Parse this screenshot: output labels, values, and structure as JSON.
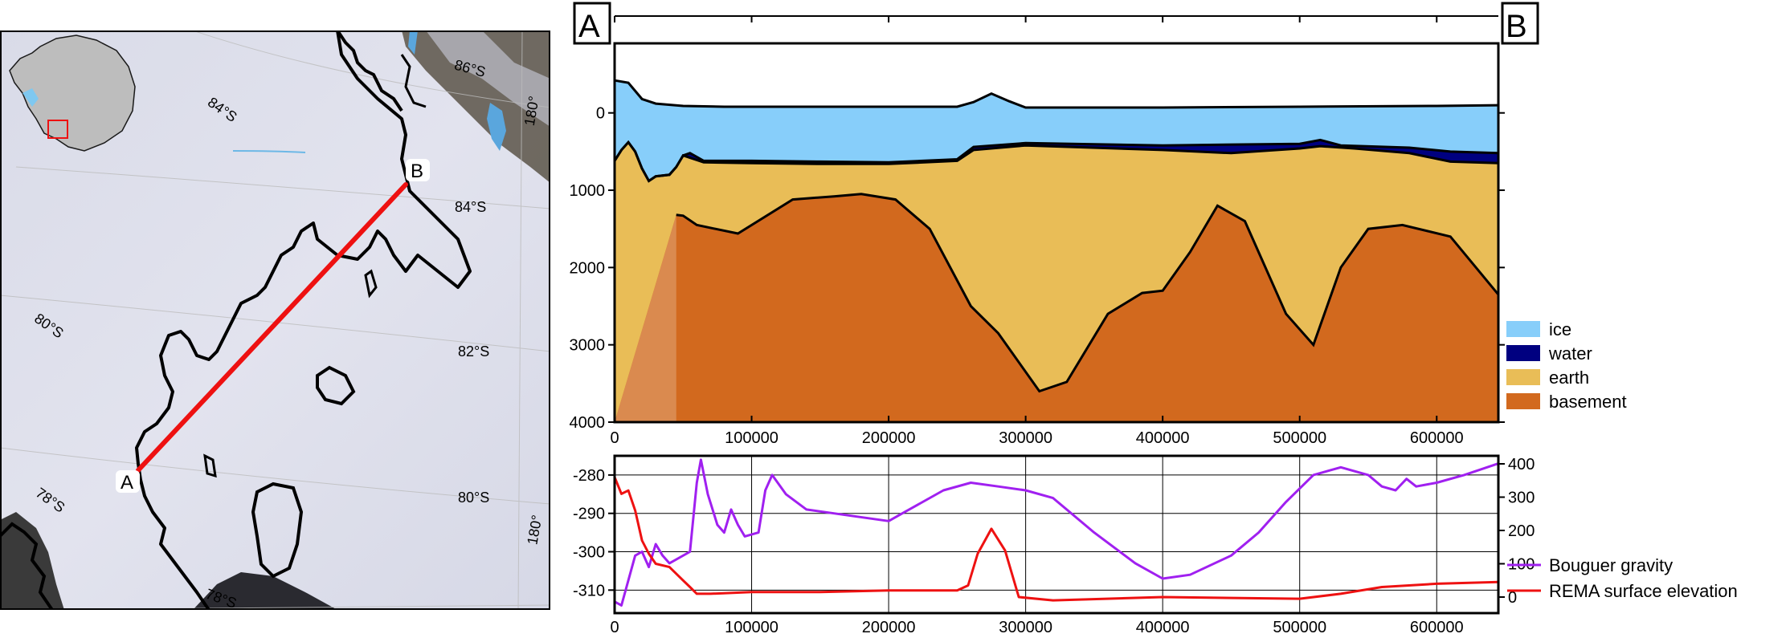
{
  "map": {
    "profile_endpoints": [
      {
        "label": "A"
      },
      {
        "label": "B"
      }
    ],
    "graticule_labels": [
      {
        "text": "84°S"
      },
      {
        "text": "86°S"
      },
      {
        "text": "180°"
      },
      {
        "text": "84°S"
      },
      {
        "text": "80°S"
      },
      {
        "text": "82°S"
      },
      {
        "text": "80°S"
      },
      {
        "text": "78°S"
      },
      {
        "text": "78°S"
      },
      {
        "text": "180°"
      }
    ],
    "colors": {
      "profile_line": "#ee1111",
      "inset_box": "#ee1111",
      "coastline": "#000000",
      "ice": "#dcdde9"
    }
  },
  "cross_section": {
    "corner_labels": {
      "left": "A",
      "right": "B"
    },
    "chart_data": [
      {
        "type": "area",
        "x_ticks": [
          "0",
          "100000",
          "200000",
          "300000",
          "400000",
          "500000",
          "600000"
        ],
        "y_ticks": [
          "0",
          "1000",
          "2000",
          "3000",
          "4000"
        ],
        "xlim": [
          0,
          645000
        ],
        "ylim": [
          -900,
          4000
        ],
        "y_reversed": true,
        "legend": "right",
        "legend_entries": [
          {
            "name": "ice",
            "color": "#87cefa"
          },
          {
            "name": "water",
            "color": "#000080"
          },
          {
            "name": "earth",
            "color": "#e9bd57"
          },
          {
            "name": "basement",
            "color": "#d2691e"
          }
        ],
        "layers": {
          "ice_top": [
            [
              0,
              -420
            ],
            [
              10000,
              -390
            ],
            [
              20000,
              -180
            ],
            [
              30000,
              -120
            ],
            [
              50000,
              -90
            ],
            [
              80000,
              -80
            ],
            [
              150000,
              -80
            ],
            [
              250000,
              -80
            ],
            [
              262000,
              -140
            ],
            [
              275000,
              -250
            ],
            [
              288000,
              -150
            ],
            [
              300000,
              -70
            ],
            [
              400000,
              -70
            ],
            [
              500000,
              -80
            ],
            [
              600000,
              -90
            ],
            [
              645000,
              -100
            ]
          ],
          "ice_base": [
            [
              0,
              620
            ],
            [
              5000,
              480
            ],
            [
              10000,
              380
            ],
            [
              15000,
              500
            ],
            [
              20000,
              720
            ],
            [
              25000,
              880
            ],
            [
              30000,
              820
            ],
            [
              40000,
              800
            ],
            [
              45000,
              700
            ],
            [
              50000,
              550
            ],
            [
              55000,
              520
            ],
            [
              65000,
              620
            ],
            [
              100000,
              620
            ],
            [
              150000,
              630
            ],
            [
              200000,
              640
            ],
            [
              250000,
              600
            ],
            [
              262000,
              440
            ],
            [
              300000,
              390
            ],
            [
              400000,
              420
            ],
            [
              500000,
              400
            ],
            [
              515000,
              350
            ],
            [
              530000,
              420
            ],
            [
              580000,
              450
            ],
            [
              610000,
              500
            ],
            [
              645000,
              520
            ]
          ],
          "water_base": [
            [
              0,
              620
            ],
            [
              5000,
              480
            ],
            [
              10000,
              380
            ],
            [
              15000,
              500
            ],
            [
              20000,
              720
            ],
            [
              25000,
              880
            ],
            [
              30000,
              820
            ],
            [
              40000,
              800
            ],
            [
              45000,
              700
            ],
            [
              50000,
              550
            ],
            [
              55000,
              580
            ],
            [
              65000,
              640
            ],
            [
              100000,
              650
            ],
            [
              150000,
              660
            ],
            [
              200000,
              660
            ],
            [
              250000,
              620
            ],
            [
              262000,
              480
            ],
            [
              300000,
              420
            ],
            [
              400000,
              480
            ],
            [
              450000,
              520
            ],
            [
              500000,
              460
            ],
            [
              515000,
              430
            ],
            [
              540000,
              460
            ],
            [
              580000,
              520
            ],
            [
              610000,
              630
            ],
            [
              645000,
              650
            ]
          ],
          "basement_top": [
            [
              0,
              4000
            ],
            [
              45000,
              1320
            ],
            [
              50000,
              1330
            ],
            [
              60000,
              1450
            ],
            [
              90000,
              1560
            ],
            [
              130000,
              1120
            ],
            [
              160000,
              1080
            ],
            [
              180000,
              1050
            ],
            [
              205000,
              1120
            ],
            [
              230000,
              1500
            ],
            [
              260000,
              2500
            ],
            [
              280000,
              2850
            ],
            [
              310000,
              3600
            ],
            [
              330000,
              3480
            ],
            [
              360000,
              2600
            ],
            [
              385000,
              2330
            ],
            [
              400000,
              2300
            ],
            [
              420000,
              1800
            ],
            [
              440000,
              1200
            ],
            [
              460000,
              1400
            ],
            [
              490000,
              2600
            ],
            [
              510000,
              3000
            ],
            [
              530000,
              2000
            ],
            [
              550000,
              1500
            ],
            [
              575000,
              1450
            ],
            [
              610000,
              1600
            ],
            [
              645000,
              2350
            ]
          ]
        }
      },
      {
        "type": "line",
        "x_ticks": [
          "0",
          "100000",
          "200000",
          "300000",
          "400000",
          "500000",
          "600000"
        ],
        "y_left_ticks": [
          "-280",
          "-290",
          "-300",
          "-310"
        ],
        "y_right_ticks": [
          "400",
          "300",
          "200",
          "100",
          "0"
        ],
        "xlim": [
          0,
          645000
        ],
        "ylim_left": [
          -316,
          -275
        ],
        "ylim_right": [
          0,
          400
        ],
        "grid": true,
        "legend": "right",
        "series": [
          {
            "name": "Bouguer gravity",
            "axis": "left",
            "color": "#a020f0",
            "points": [
              [
                0,
                -313
              ],
              [
                5000,
                -314
              ],
              [
                15000,
                -301
              ],
              [
                20000,
                -300
              ],
              [
                25000,
                -304
              ],
              [
                30000,
                -298
              ],
              [
                35000,
                -301
              ],
              [
                40000,
                -303
              ],
              [
                55000,
                -300
              ],
              [
                60000,
                -282
              ],
              [
                63000,
                -276
              ],
              [
                68000,
                -285
              ],
              [
                75000,
                -293
              ],
              [
                80000,
                -295
              ],
              [
                85000,
                -289
              ],
              [
                90000,
                -293
              ],
              [
                95000,
                -296
              ],
              [
                105000,
                -295
              ],
              [
                110000,
                -284
              ],
              [
                115000,
                -280
              ],
              [
                125000,
                -285
              ],
              [
                140000,
                -289
              ],
              [
                160000,
                -290
              ],
              [
                200000,
                -292
              ],
              [
                210000,
                -290
              ],
              [
                240000,
                -284
              ],
              [
                260000,
                -282
              ],
              [
                280000,
                -283
              ],
              [
                300000,
                -284
              ],
              [
                320000,
                -286
              ],
              [
                350000,
                -295
              ],
              [
                380000,
                -303
              ],
              [
                400000,
                -307
              ],
              [
                420000,
                -306
              ],
              [
                450000,
                -301
              ],
              [
                470000,
                -295
              ],
              [
                490000,
                -287
              ],
              [
                510000,
                -280
              ],
              [
                530000,
                -278
              ],
              [
                550000,
                -280
              ],
              [
                560000,
                -283
              ],
              [
                570000,
                -284
              ],
              [
                578000,
                -281
              ],
              [
                585000,
                -283
              ],
              [
                600000,
                -282
              ],
              [
                620000,
                -280
              ],
              [
                645000,
                -277
              ]
            ]
          },
          {
            "name": "REMA surface elevation",
            "axis": "right",
            "color": "#ee1111",
            "points": [
              [
                0,
                360
              ],
              [
                5000,
                310
              ],
              [
                10000,
                320
              ],
              [
                15000,
                260
              ],
              [
                20000,
                170
              ],
              [
                25000,
                130
              ],
              [
                30000,
                100
              ],
              [
                40000,
                90
              ],
              [
                50000,
                50
              ],
              [
                55000,
                30
              ],
              [
                60000,
                10
              ],
              [
                70000,
                10
              ],
              [
                100000,
                15
              ],
              [
                150000,
                15
              ],
              [
                200000,
                20
              ],
              [
                250000,
                20
              ],
              [
                258000,
                35
              ],
              [
                265000,
                130
              ],
              [
                275000,
                205
              ],
              [
                285000,
                140
              ],
              [
                295000,
                0
              ],
              [
                320000,
                -10
              ],
              [
                400000,
                0
              ],
              [
                500000,
                -5
              ],
              [
                530000,
                10
              ],
              [
                560000,
                30
              ],
              [
                600000,
                40
              ],
              [
                645000,
                45
              ]
            ]
          }
        ]
      }
    ]
  }
}
